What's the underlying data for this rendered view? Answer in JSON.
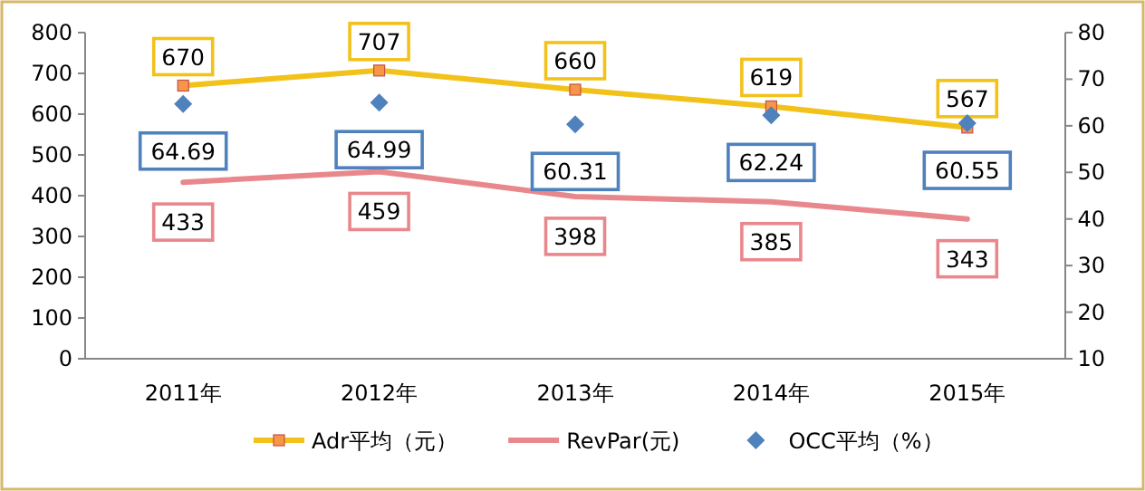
{
  "chart_data": {
    "type": "line",
    "categories": [
      "2011年",
      "2012年",
      "2013年",
      "2014年",
      "2015年"
    ],
    "series": [
      {
        "name": "Adr平均（元）",
        "color": "#f2c21b",
        "marker": "square",
        "values": [
          670,
          707,
          660,
          619,
          567
        ]
      },
      {
        "name": "RevPar(元)",
        "color": "#e9888c",
        "marker": "none",
        "values": [
          433,
          459,
          398,
          385,
          343
        ]
      },
      {
        "name": "OCC平均（%）",
        "type": "scatter",
        "axis": "y2",
        "color": "#4f81bd",
        "marker": "diamond",
        "values": [
          64.69,
          64.99,
          60.31,
          62.24,
          60.55
        ]
      }
    ],
    "ylim": [
      0,
      800
    ],
    "yticks": [
      0,
      100,
      200,
      300,
      400,
      500,
      600,
      700,
      800
    ],
    "y2lim": [
      10,
      80
    ],
    "y2ticks": [
      10,
      20,
      30,
      40,
      50,
      60,
      70,
      80
    ],
    "data_labels": true,
    "legend": "bottom",
    "grid": false
  }
}
